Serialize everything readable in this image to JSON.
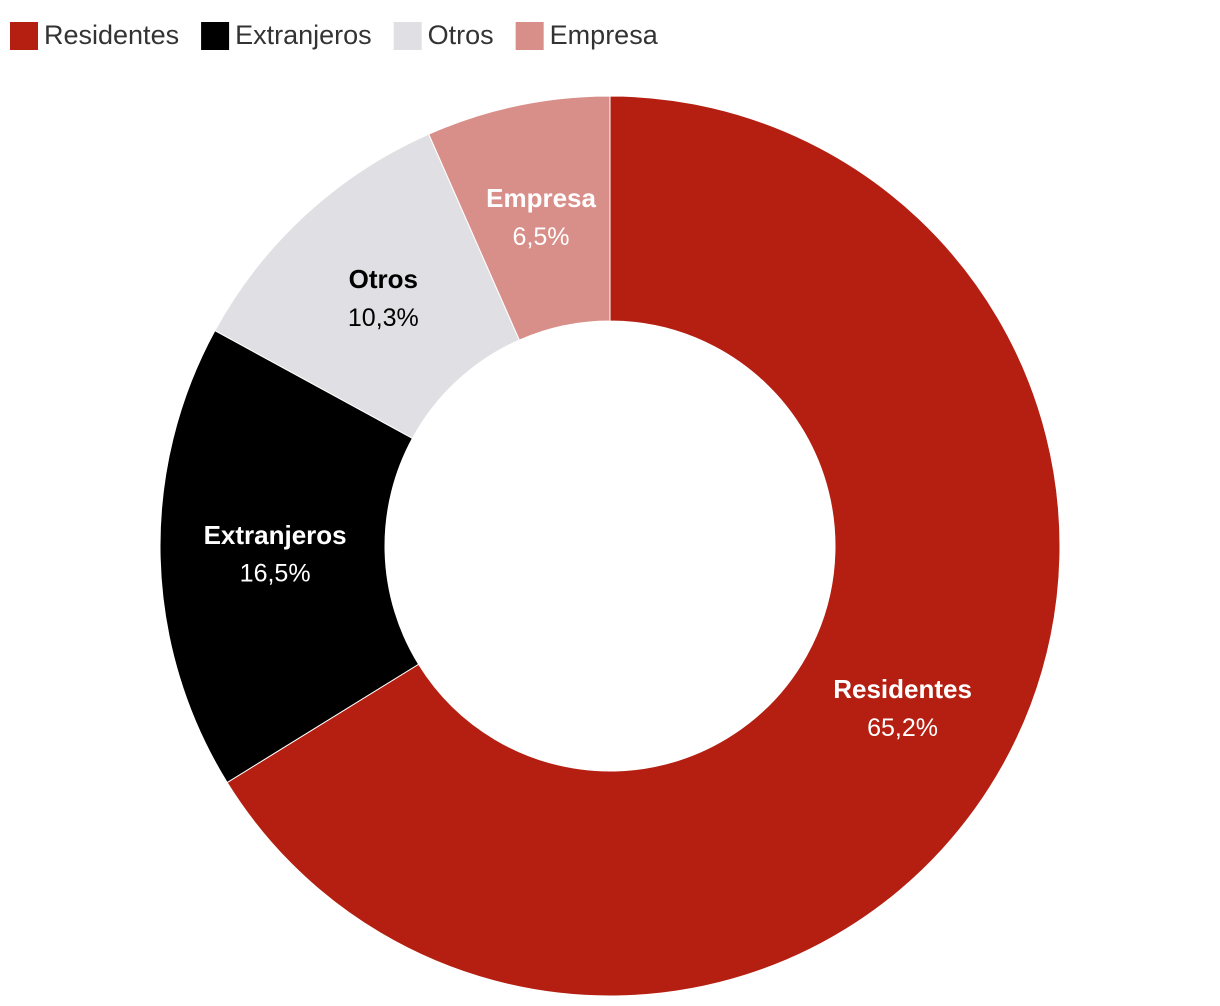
{
  "chart_data": {
    "type": "donut",
    "categories": [
      "Residentes",
      "Extranjeros",
      "Otros",
      "Empresa"
    ],
    "values": [
      65.2,
      16.5,
      10.3,
      6.5
    ],
    "value_labels": [
      "65,2%",
      "16,5%",
      "10,3%",
      "6,5%"
    ],
    "colors": [
      "#b41f12",
      "#000000",
      "#e0dfe3",
      "#d98f89"
    ],
    "legend": "top-left"
  }
}
